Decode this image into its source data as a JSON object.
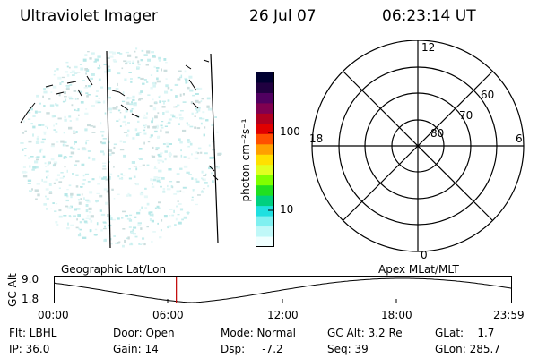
{
  "header": {
    "instrument": "Ultraviolet Imager",
    "date": "26 Jul 07",
    "time": "06:23:14 UT"
  },
  "colorbar": {
    "unit_label": "photon cm⁻²s⁻¹",
    "ticks": [
      "100",
      "10"
    ],
    "colors": [
      "#000030",
      "#200040",
      "#500060",
      "#800050",
      "#b00020",
      "#e00000",
      "#ff5000",
      "#ffa000",
      "#ffe000",
      "#e0ff20",
      "#80ff00",
      "#20e020",
      "#00d080",
      "#20e0e0",
      "#80f0f0",
      "#c0f8f8",
      "#f0ffff"
    ]
  },
  "polar_plot": {
    "mlt_labels": {
      "top": "12",
      "left": "18",
      "right": "6",
      "bottom": "0"
    },
    "lat_labels": [
      "60",
      "70",
      "80"
    ]
  },
  "orbit_strip": {
    "left_title": "Geographic Lat/Lon",
    "right_title": "Apex  MLat/MLT",
    "axis_label": "GC Alt",
    "y_max": "9.0",
    "y_min": "1.8",
    "time_ticks": [
      "00:00",
      "06:00",
      "12:00",
      "18:00",
      "23:59"
    ],
    "current_time_fraction": 0.266
  },
  "info": {
    "flt": "Flt: LBHL",
    "door": "Door: Open",
    "mode": "Mode: Normal",
    "gc_alt": "GC Alt: 3.2 Re",
    "glat": "GLat:    1.7",
    "ip": "IP: 36.0",
    "gain": "Gain: 14",
    "dsp": "Dsp:     -7.2",
    "seq": "Seq: 39",
    "glon": "GLon: 285.7"
  }
}
